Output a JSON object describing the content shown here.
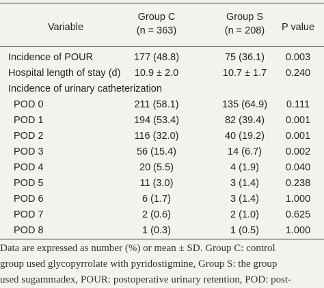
{
  "table": {
    "headers": {
      "variable": "Variable",
      "group_c_line1": "Group C",
      "group_c_line2": "(n = 363)",
      "group_s_line1": "Group S",
      "group_s_line2": "(n = 208)",
      "p_value": "P value"
    },
    "rows": [
      {
        "label": "Incidence of POUR",
        "group_c": "177 (48.8)",
        "group_s": "75 (36.1)",
        "p": "0.003"
      },
      {
        "label": "Hospital length of stay (d)",
        "group_c": "10.9 ± 2.0",
        "group_s": "10.7 ± 1.7",
        "p": "0.240"
      },
      {
        "label": "Incidence of urinary catheterization",
        "group_c": "",
        "group_s": "",
        "p": ""
      },
      {
        "label": "POD 0",
        "group_c": "211 (58.1)",
        "group_s": "135 (64.9)",
        "p": "0.111"
      },
      {
        "label": "POD 1",
        "group_c": "194 (53.4)",
        "group_s": "82 (39.4)",
        "p": "0.001"
      },
      {
        "label": "POD 2",
        "group_c": "116 (32.0)",
        "group_s": "40 (19.2)",
        "p": "0.001"
      },
      {
        "label": "POD 3",
        "group_c": "56 (15.4)",
        "group_s": "14 (6.7)",
        "p": "0.002"
      },
      {
        "label": "POD 4",
        "group_c": "20 (5.5)",
        "group_s": "4 (1.9)",
        "p": "0.040"
      },
      {
        "label": "POD 5",
        "group_c": "11 (3.0)",
        "group_s": "3 (1.4)",
        "p": "0.238"
      },
      {
        "label": "POD 6",
        "group_c": "6 (1.7)",
        "group_s": "3 (1.4)",
        "p": "1.000"
      },
      {
        "label": "POD 7",
        "group_c": "2 (0.6)",
        "group_s": "2 (1.0)",
        "p": "0.625"
      },
      {
        "label": "POD 8",
        "group_c": "1 (0.3)",
        "group_s": "1 (0.5)",
        "p": "1.000"
      }
    ]
  },
  "footnote": {
    "line1": "Data are expressed as number (%) or mean ± SD. Group C: control",
    "line2": "group used glycopyrrolate with pyridostigmine, Group S: the group",
    "line3": "used sugammadex, POUR: postoperative urinary retention, POD: post-"
  }
}
